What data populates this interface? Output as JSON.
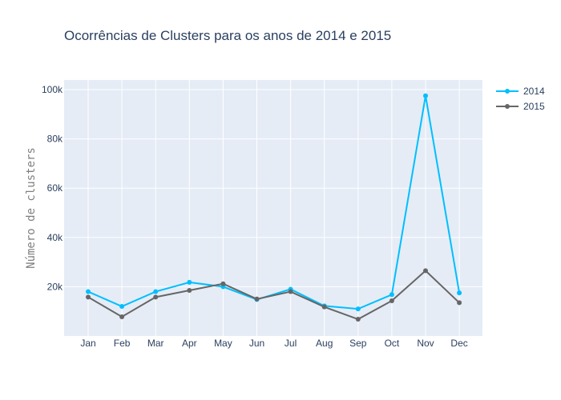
{
  "chart_data": {
    "type": "line",
    "title": "Ocorrências de Clusters para os anos de 2014 e 2015",
    "xlabel": "",
    "ylabel": "Número de clusters",
    "categories": [
      "Jan",
      "Feb",
      "Mar",
      "Apr",
      "May",
      "Jun",
      "Jul",
      "Aug",
      "Sep",
      "Oct",
      "Nov",
      "Dec"
    ],
    "ylim": [
      0,
      100000
    ],
    "yticks": [
      20000,
      40000,
      60000,
      80000,
      100000
    ],
    "ytick_labels": [
      "20k",
      "40k",
      "60k",
      "80k",
      "100k"
    ],
    "grid": true,
    "legend_position": "top-right",
    "series": [
      {
        "name": "2014",
        "color": "#00bfff",
        "values": [
          18000,
          12000,
          18000,
          21800,
          20000,
          14800,
          19000,
          12200,
          11000,
          16800,
          97500,
          17500
        ]
      },
      {
        "name": "2015",
        "color": "#666666",
        "values": [
          15800,
          7800,
          15800,
          18500,
          21200,
          15000,
          18000,
          11800,
          6800,
          14300,
          26500,
          13500
        ]
      }
    ]
  }
}
